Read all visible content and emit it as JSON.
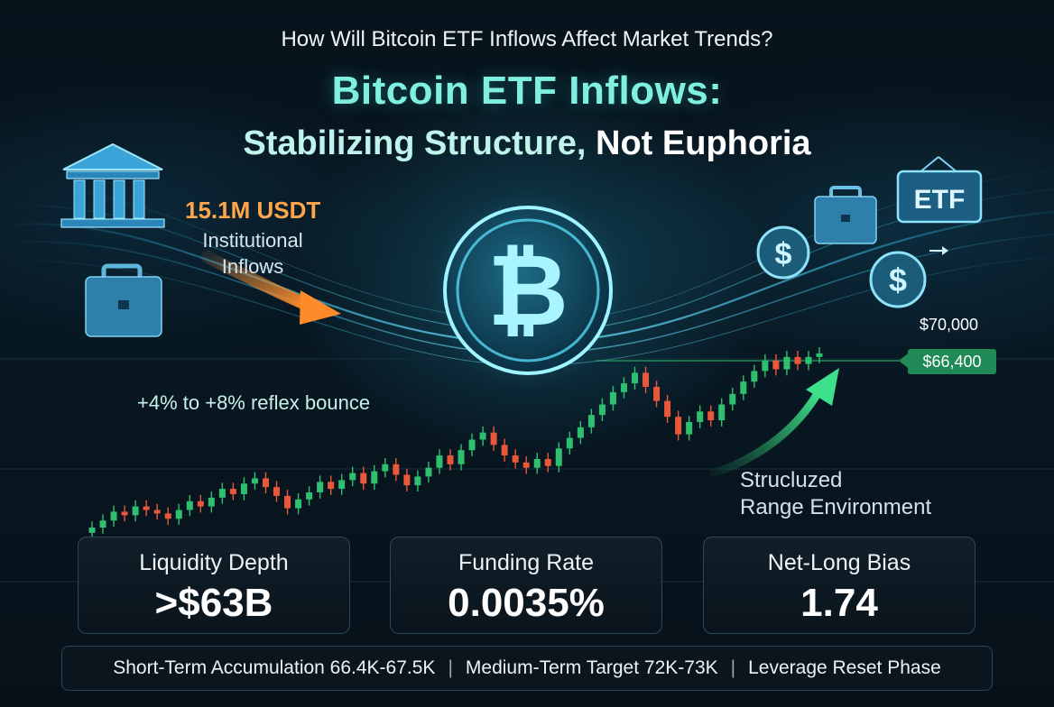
{
  "header": {
    "question": "How Will Bitcoin ETF Inflows Affect Market Trends?",
    "title": "Bitcoin ETF Inflows:",
    "subtitle_part1": "Stabilizing Structure,",
    "subtitle_part2": "Not Euphoria"
  },
  "illustration": {
    "inflow_amount": "15.1M USDT",
    "inflow_label": "Institutional Inflows",
    "bounce_label": "+4% to +8% reflex bounce",
    "price_high": "$70,000",
    "price_current": "$66,400",
    "range_label_line1": "Strucluzed",
    "range_label_line2": "Range Environment",
    "etf_sign": "ETF",
    "coin_symbol": "₿",
    "dollar_symbol": "$",
    "icons": [
      "bank-icon",
      "briefcase-icon",
      "bitcoin-coin-icon",
      "dollar-coin-icon",
      "etf-sign-icon",
      "arrow-icon"
    ],
    "colors": {
      "accent": "#7ff0e0",
      "orange": "#ffa64a",
      "up": "#2fbf71",
      "down": "#e9583a",
      "price_tag": "#1f8a55"
    }
  },
  "metrics": [
    {
      "label": "Liquidity Depth",
      "value": ">$63B"
    },
    {
      "label": "Funding Rate",
      "value": "0.0035%"
    },
    {
      "label": "Net-Long Bias",
      "value": "1.74"
    }
  ],
  "footer": {
    "items": [
      "Short-Term Accumulation 66.4K-67.5K",
      "Medium-Term Target 72K-73K",
      "Leverage Reset Phase"
    ],
    "separator": "|"
  },
  "chart_data": {
    "type": "candlestick",
    "title": "",
    "xlabel": "",
    "ylabel": "",
    "annotations": [
      "$70,000",
      "$66,400"
    ],
    "closes": [
      0.0,
      0.04,
      0.09,
      0.07,
      0.12,
      0.1,
      0.08,
      0.05,
      0.1,
      0.15,
      0.12,
      0.17,
      0.22,
      0.19,
      0.25,
      0.28,
      0.23,
      0.18,
      0.11,
      0.16,
      0.2,
      0.26,
      0.22,
      0.27,
      0.31,
      0.25,
      0.32,
      0.36,
      0.3,
      0.24,
      0.29,
      0.34,
      0.41,
      0.36,
      0.44,
      0.5,
      0.54,
      0.47,
      0.41,
      0.37,
      0.34,
      0.39,
      0.35,
      0.45,
      0.51,
      0.57,
      0.64,
      0.7,
      0.77,
      0.82,
      0.88,
      0.8,
      0.72,
      0.63,
      0.53,
      0.6,
      0.66,
      0.61,
      0.7,
      0.76,
      0.83,
      0.89,
      0.95,
      0.9,
      0.97,
      0.93,
      0.97,
      0.99
    ]
  }
}
